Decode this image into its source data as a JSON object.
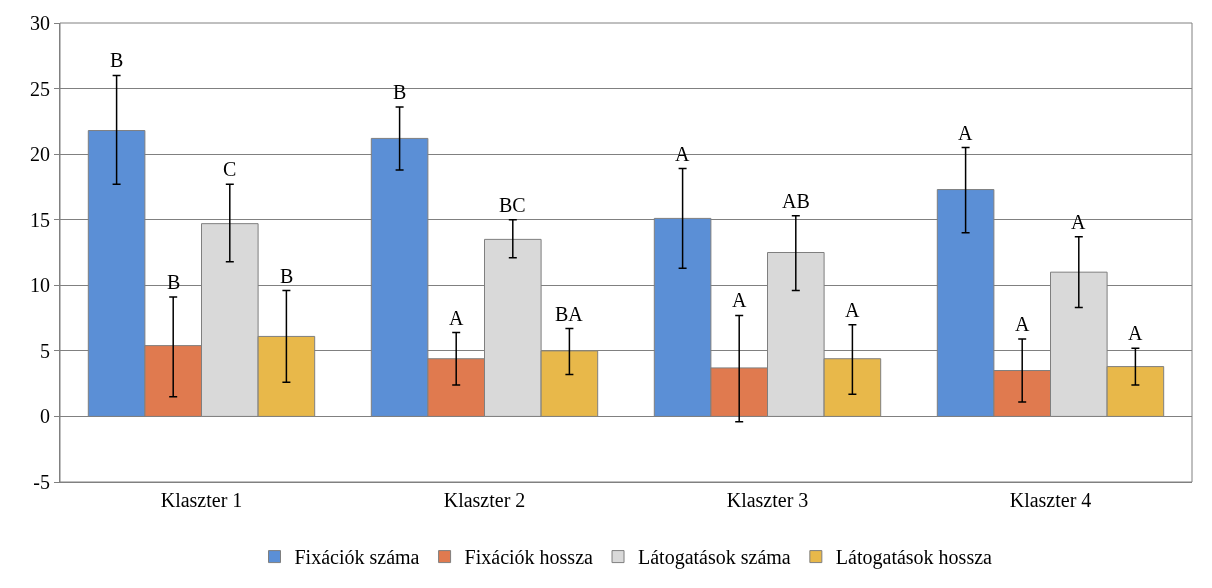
{
  "chart_data": {
    "type": "bar",
    "categories": [
      "Klaszter 1",
      "Klaszter 2",
      "Klaszter 3",
      "Klaszter 4"
    ],
    "series": [
      {
        "name": "Fixációk száma",
        "color": "#5b8fd6",
        "values": [
          21.8,
          21.2,
          15.1,
          17.3
        ],
        "errors": [
          [
            17.7,
            26.0
          ],
          [
            18.8,
            23.6
          ],
          [
            11.3,
            18.9
          ],
          [
            14.0,
            20.5
          ]
        ]
      },
      {
        "name": "Fixációk hossza",
        "color": "#e07a4f",
        "values": [
          5.4,
          4.4,
          3.7,
          3.5
        ],
        "errors": [
          [
            1.5,
            9.1
          ],
          [
            2.4,
            6.4
          ],
          [
            -0.4,
            7.7
          ],
          [
            1.1,
            5.9
          ]
        ]
      },
      {
        "name": "Látogatások száma",
        "color": "#d9d9d9",
        "values": [
          14.7,
          13.5,
          12.5,
          11.0
        ],
        "errors": [
          [
            11.8,
            17.7
          ],
          [
            12.1,
            15.0
          ],
          [
            9.6,
            15.3
          ],
          [
            8.3,
            13.7
          ]
        ]
      },
      {
        "name": "Látogatások hossza",
        "color": "#e8b84a",
        "values": [
          6.1,
          5.0,
          4.4,
          3.8
        ],
        "errors": [
          [
            2.6,
            9.6
          ],
          [
            3.2,
            6.7
          ],
          [
            1.7,
            7.0
          ],
          [
            2.4,
            5.2
          ]
        ]
      }
    ],
    "annotations": [
      "B",
      "B",
      "C",
      "B",
      "B",
      "A",
      "BC",
      "BA",
      "A",
      "A",
      "AB",
      "A",
      "A",
      "A",
      "A",
      "A"
    ],
    "ylim": [
      -5,
      30
    ],
    "yticks": [
      -5,
      0,
      5,
      10,
      15,
      20,
      25,
      30
    ],
    "grid": "y",
    "legend": "bottom"
  }
}
